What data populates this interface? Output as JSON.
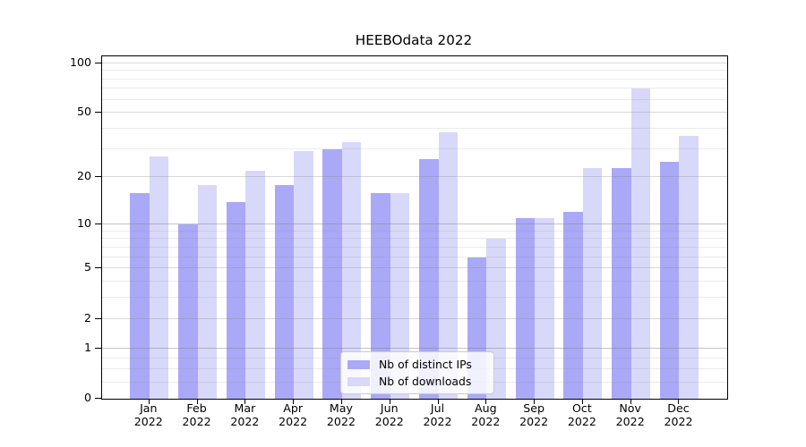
{
  "chart_data": {
    "type": "bar",
    "title": "HEEBOdata 2022",
    "x_categories": [
      "Jan",
      "Feb",
      "Mar",
      "Apr",
      "May",
      "Jun",
      "Jul",
      "Aug",
      "Sep",
      "Oct",
      "Nov",
      "Dec"
    ],
    "x_year_label": "2022",
    "series": [
      {
        "name": "Nb of distinct IPs",
        "color": "#a9a9f7",
        "values": [
          16,
          10,
          14,
          18,
          30,
          16,
          26,
          6,
          11,
          12,
          23,
          25
        ]
      },
      {
        "name": "Nb of downloads",
        "color": "#d8d8fa",
        "values": [
          27,
          18,
          22,
          29,
          33,
          16,
          38,
          8,
          11,
          23,
          70,
          36
        ]
      }
    ],
    "y_axis": {
      "scale": "log10(1+x)",
      "tick_values": [
        0,
        1,
        2,
        5,
        10,
        20,
        50,
        100
      ],
      "minor_gridline_values": [
        0.25,
        0.5,
        0.75,
        3,
        4,
        6,
        7,
        8,
        9,
        30,
        40,
        60,
        70,
        80,
        90
      ],
      "emphasized_gridline_values": [
        1,
        10
      ],
      "ylim": [
        0,
        110
      ]
    },
    "grid": true,
    "legend": {
      "position": "lower center"
    }
  },
  "colors": {
    "background": "#ffffff",
    "spine": "#000000",
    "gridline_base": "#808080",
    "bar_distinct_ips": "#a9a9f7",
    "bar_downloads": "#d8d8fa",
    "legend_border": "#cccccc"
  }
}
